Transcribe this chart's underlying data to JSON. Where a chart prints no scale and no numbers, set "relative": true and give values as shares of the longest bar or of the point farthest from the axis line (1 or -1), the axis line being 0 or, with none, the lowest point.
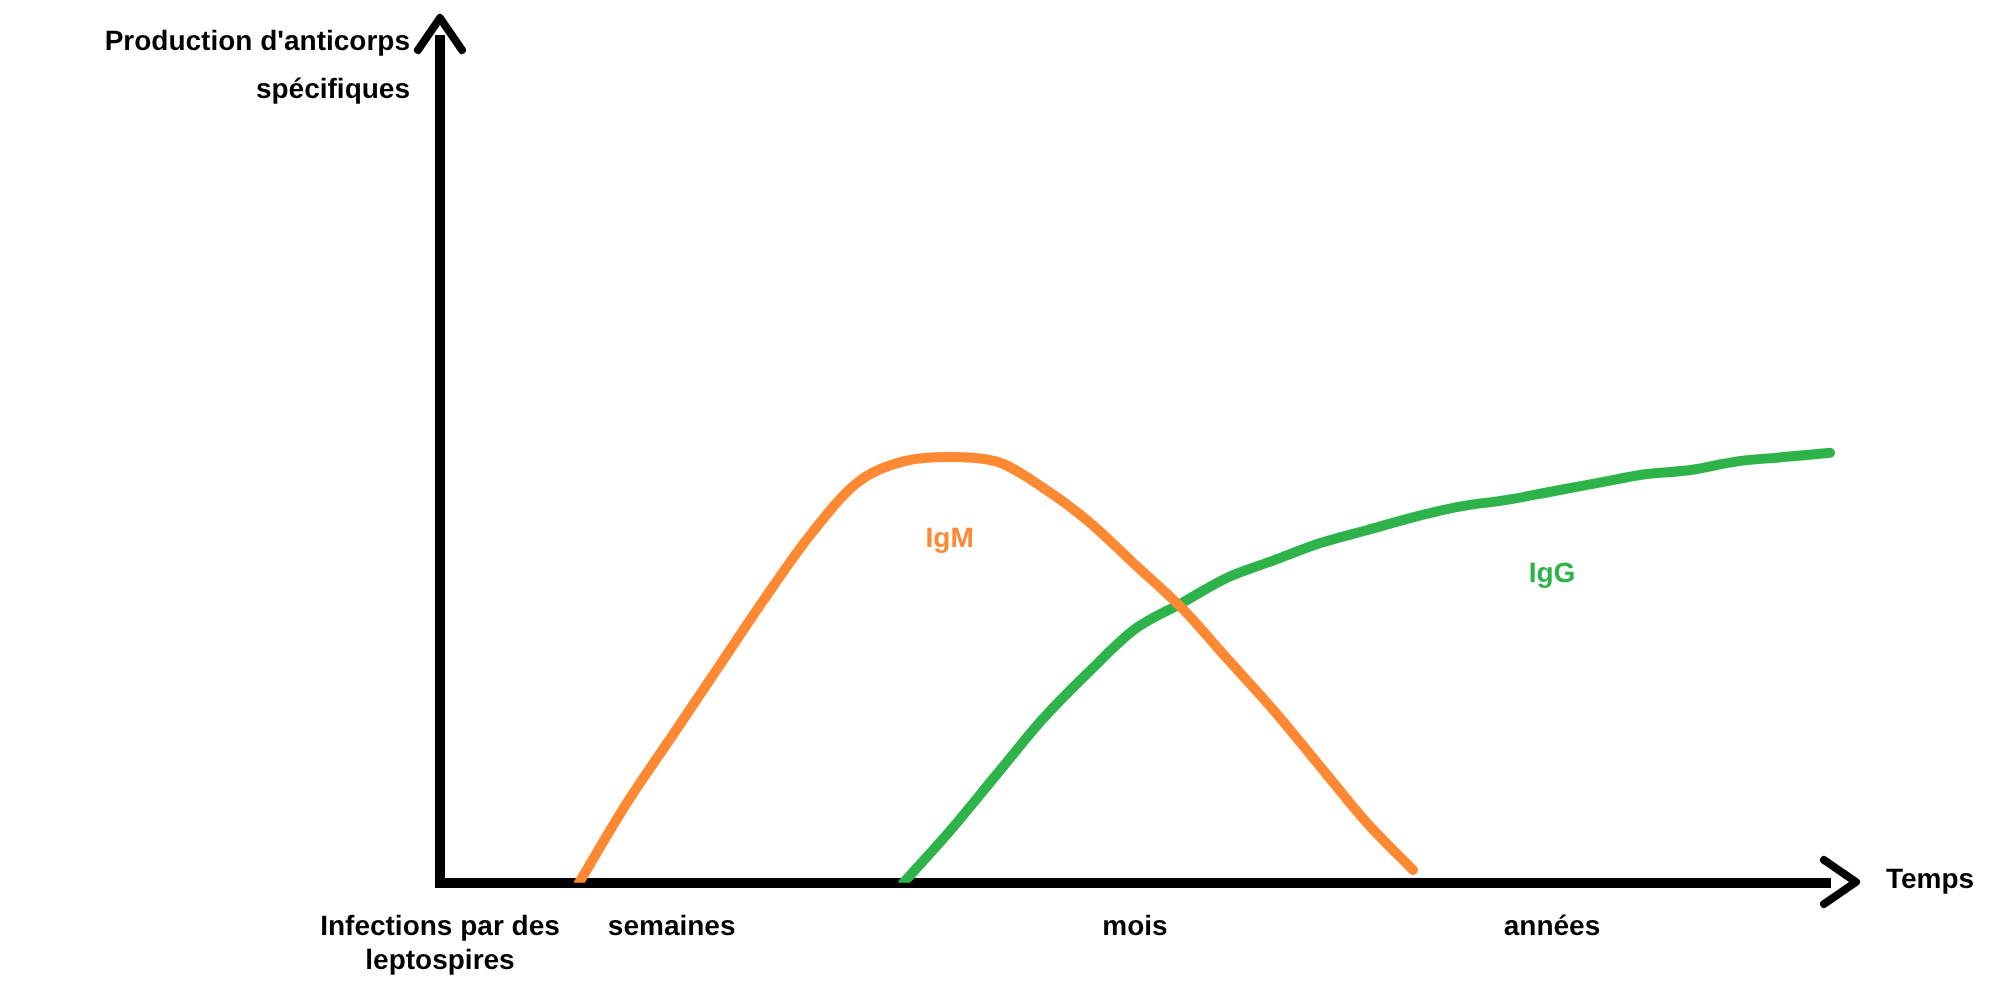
{
  "chart_data": {
    "type": "line",
    "relative": true,
    "annotations": [
      "Production d'anticorps spécifiques"
    ],
    "xlabel": "Temps",
    "categories": [
      "Infections par des leptospires",
      null,
      null,
      null,
      null,
      "semaines",
      null,
      null,
      null,
      null,
      null,
      null,
      null,
      null,
      null,
      "mois",
      null,
      null,
      null,
      null,
      null,
      null,
      null,
      null,
      "années",
      null,
      null,
      null,
      null,
      null,
      null
    ],
    "series": [
      {
        "name": "IgM",
        "color": "#ff8833",
        "values": [
          null,
          null,
          null,
          0,
          0.18,
          0.34,
          0.5,
          0.66,
          0.81,
          0.93,
          0.98,
          0.99,
          0.98,
          0.92,
          0.84,
          0.74,
          0.64,
          0.52,
          0.4,
          0.27,
          0.14,
          0.03,
          null,
          null,
          null,
          null,
          null,
          null,
          null,
          null,
          null
        ]
      },
      {
        "name": "IgG",
        "color": "#2db34a",
        "values": [
          null,
          null,
          null,
          null,
          null,
          null,
          null,
          null,
          null,
          null,
          0,
          0.12,
          0.25,
          0.38,
          0.49,
          0.59,
          0.65,
          0.71,
          0.75,
          0.79,
          0.82,
          0.85,
          0.875,
          0.89,
          0.91,
          0.93,
          0.95,
          0.96,
          0.98,
          0.99,
          1
        ]
      }
    ],
    "legend": false,
    "grid": false,
    "marker": "none",
    "line_style": "solid"
  }
}
